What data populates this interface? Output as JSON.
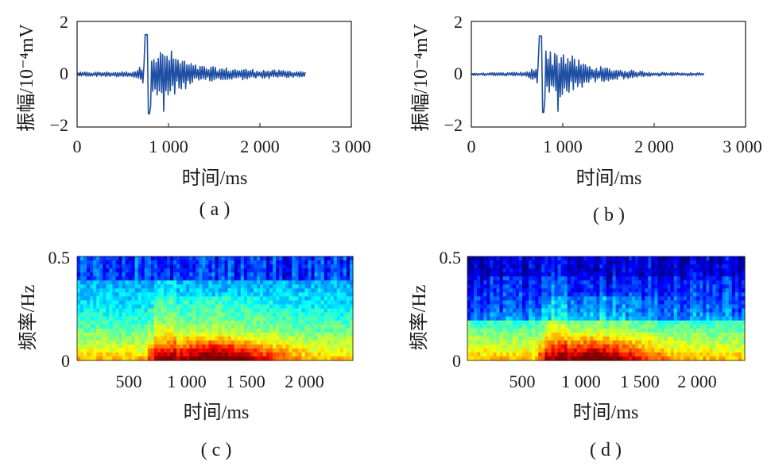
{
  "chart_data": [
    {
      "panel": "(a)",
      "type": "line",
      "xlabel": "时间/ms",
      "ylabel": "振幅/10⁻⁴mV",
      "xlim": [
        0,
        3000
      ],
      "ylim": [
        -2,
        2
      ],
      "xticks": [
        0,
        1000,
        2000,
        3000
      ],
      "xtick_labels": [
        "0",
        "1 000",
        "2 000",
        "3 000"
      ],
      "yticks": [
        2,
        0,
        -2
      ],
      "ytick_labels": [
        "2",
        "0",
        "−2"
      ],
      "x_end": 2500,
      "signal_envelope": [
        [
          0,
          0.08
        ],
        [
          600,
          0.1
        ],
        [
          700,
          0.3
        ],
        [
          740,
          1.0
        ],
        [
          760,
          1.6
        ],
        [
          800,
          1.6
        ],
        [
          850,
          0.9
        ],
        [
          900,
          0.9
        ],
        [
          1000,
          1.0
        ],
        [
          1100,
          0.7
        ],
        [
          1300,
          0.35
        ],
        [
          1600,
          0.25
        ],
        [
          2000,
          0.18
        ],
        [
          2500,
          0.12
        ]
      ],
      "peaks": {
        "max": 1.5,
        "min": -1.4
      }
    },
    {
      "panel": "(b)",
      "type": "line",
      "xlabel": "时间/ms",
      "ylabel": "振幅/10⁻⁴mV",
      "xlim": [
        0,
        3000
      ],
      "ylim": [
        -2,
        2
      ],
      "xticks": [
        0,
        1000,
        2000,
        3000
      ],
      "xtick_labels": [
        "0",
        "1 000",
        "2 000",
        "3 000"
      ],
      "yticks": [
        2,
        0,
        -2
      ],
      "ytick_labels": [
        "2",
        "0",
        "−2"
      ],
      "x_end": 2550,
      "signal_envelope": [
        [
          0,
          0.04
        ],
        [
          600,
          0.08
        ],
        [
          700,
          0.3
        ],
        [
          740,
          1.0
        ],
        [
          760,
          1.5
        ],
        [
          800,
          1.5
        ],
        [
          850,
          0.9
        ],
        [
          900,
          0.9
        ],
        [
          1000,
          1.0
        ],
        [
          1100,
          0.7
        ],
        [
          1300,
          0.35
        ],
        [
          1600,
          0.2
        ],
        [
          2000,
          0.08
        ],
        [
          2550,
          0.05
        ]
      ],
      "peaks": {
        "max": 1.45,
        "min": -1.4
      }
    },
    {
      "panel": "(c)",
      "type": "heatmap",
      "xlabel": "时间/ms",
      "ylabel": "频率/Hz",
      "xlim": [
        0,
        2500
      ],
      "ylim": [
        0,
        0.5
      ],
      "xticks": [
        500,
        1000,
        1500,
        2000
      ],
      "xtick_labels": [
        "500",
        "1 000",
        "1 500",
        "2 000"
      ],
      "yticks": [
        0.5,
        0
      ],
      "ytick_labels": [
        "0.5",
        "0"
      ],
      "colormap": [
        "#00007f",
        "#0000ff",
        "#0080ff",
        "#00ffff",
        "#80ff80",
        "#ffff00",
        "#ff8000",
        "#ff0000",
        "#7f0000"
      ],
      "hot_region_ms": [
        650,
        2100
      ],
      "hot_band_hz": [
        0,
        0.12
      ]
    },
    {
      "panel": "(d)",
      "type": "heatmap",
      "xlabel": "时间/ms",
      "ylabel": "频率/Hz",
      "xlim": [
        0,
        2500
      ],
      "ylim": [
        0,
        0.5
      ],
      "xticks": [
        500,
        1000,
        1500,
        2000
      ],
      "xtick_labels": [
        "500",
        "1 000",
        "1 500",
        "2 000"
      ],
      "yticks": [
        0.5,
        0
      ],
      "ytick_labels": [
        "0.5",
        "0"
      ],
      "colormap": [
        "#00007f",
        "#0000ff",
        "#0080ff",
        "#00ffff",
        "#80ff80",
        "#ffff00",
        "#ff8000",
        "#ff0000",
        "#7f0000"
      ],
      "hot_region_ms": [
        650,
        1900
      ],
      "hot_band_hz": [
        0,
        0.1
      ]
    }
  ],
  "captions": [
    "( a )",
    "( b )",
    "( c )",
    "( d )"
  ],
  "colors": {
    "line": "#1f4fa3",
    "axis": "#1a1a1a"
  }
}
